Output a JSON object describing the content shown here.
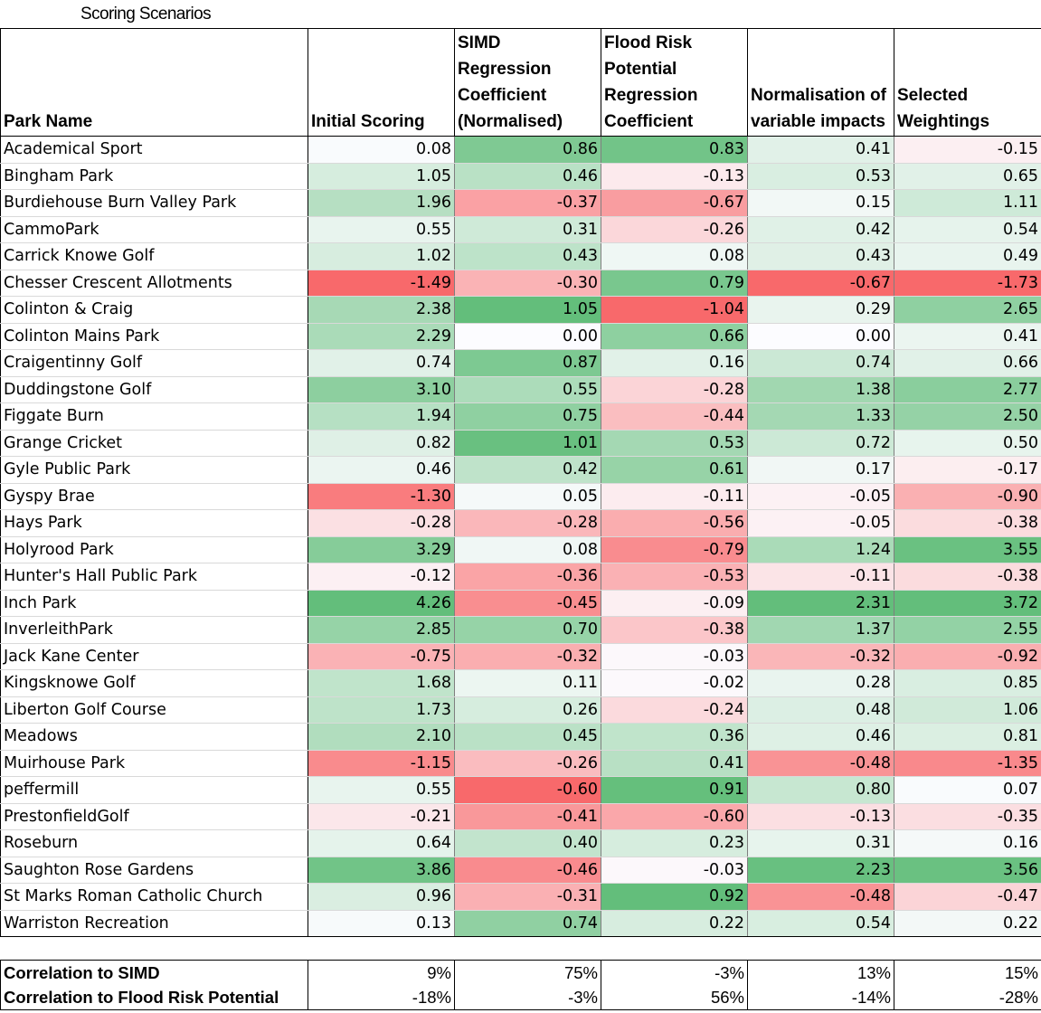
{
  "title": "Scoring Scenarios",
  "headers": [
    "Park Name",
    "Initial Scoring",
    "SIMD Regression Coefficient (Normalised)",
    "Flood Risk Potential Regression Coefficient",
    "Normalisation of variable impacts",
    "Selected Weightings"
  ],
  "colors": {
    "positive": "#63be7b",
    "negative": "#f8696b",
    "neutral": "#fcfcff"
  },
  "rows": [
    {
      "name": "Academical Sport",
      "v": [
        "0.08",
        "0.86",
        "0.83",
        "0.41",
        "-0.15"
      ]
    },
    {
      "name": "Bingham Park",
      "v": [
        "1.05",
        "0.46",
        "-0.13",
        "0.53",
        "0.65"
      ]
    },
    {
      "name": "Burdiehouse Burn Valley Park",
      "v": [
        "1.96",
        "-0.37",
        "-0.67",
        "0.15",
        "1.11"
      ]
    },
    {
      "name": "CammoPark",
      "v": [
        "0.55",
        "0.31",
        "-0.26",
        "0.42",
        "0.54"
      ]
    },
    {
      "name": "Carrick Knowe Golf",
      "v": [
        "1.02",
        "0.43",
        "0.08",
        "0.43",
        "0.49"
      ]
    },
    {
      "name": "Chesser Crescent Allotments",
      "v": [
        "-1.49",
        "-0.30",
        "0.79",
        "-0.67",
        "-1.73"
      ]
    },
    {
      "name": "Colinton & Craig",
      "v": [
        "2.38",
        "1.05",
        "-1.04",
        "0.29",
        "2.65"
      ]
    },
    {
      "name": "Colinton Mains Park",
      "v": [
        "2.29",
        "0.00",
        "0.66",
        "0.00",
        "0.41"
      ]
    },
    {
      "name": "Craigentinny Golf",
      "v": [
        "0.74",
        "0.87",
        "0.16",
        "0.74",
        "0.66"
      ]
    },
    {
      "name": "Duddingstone Golf",
      "v": [
        "3.10",
        "0.55",
        "-0.28",
        "1.38",
        "2.77"
      ]
    },
    {
      "name": "Figgate Burn",
      "v": [
        "1.94",
        "0.75",
        "-0.44",
        "1.33",
        "2.50"
      ]
    },
    {
      "name": "Grange Cricket",
      "v": [
        "0.82",
        "1.01",
        "0.53",
        "0.72",
        "0.50"
      ]
    },
    {
      "name": "Gyle Public Park",
      "v": [
        "0.46",
        "0.42",
        "0.61",
        "0.17",
        "-0.17"
      ]
    },
    {
      "name": "Gyspy Brae",
      "v": [
        "-1.30",
        "0.05",
        "-0.11",
        "-0.05",
        "-0.90"
      ]
    },
    {
      "name": "Hays Park",
      "v": [
        "-0.28",
        "-0.28",
        "-0.56",
        "-0.05",
        "-0.38"
      ]
    },
    {
      "name": "Holyrood Park",
      "v": [
        "3.29",
        "0.08",
        "-0.79",
        "1.24",
        "3.55"
      ]
    },
    {
      "name": "Hunter's Hall Public Park",
      "v": [
        "-0.12",
        "-0.36",
        "-0.53",
        "-0.11",
        "-0.38"
      ]
    },
    {
      "name": "Inch Park",
      "v": [
        "4.26",
        "-0.45",
        "-0.09",
        "2.31",
        "3.72"
      ]
    },
    {
      "name": "InverleithPark",
      "v": [
        "2.85",
        "0.70",
        "-0.38",
        "1.37",
        "2.55"
      ]
    },
    {
      "name": "Jack Kane Center",
      "v": [
        "-0.75",
        "-0.32",
        "-0.03",
        "-0.32",
        "-0.92"
      ]
    },
    {
      "name": "Kingsknowe Golf",
      "v": [
        "1.68",
        "0.11",
        "-0.02",
        "0.28",
        "0.85"
      ]
    },
    {
      "name": "Liberton Golf Course",
      "v": [
        "1.73",
        "0.26",
        "-0.24",
        "0.48",
        "1.06"
      ]
    },
    {
      "name": "Meadows",
      "v": [
        "2.10",
        "0.45",
        "0.36",
        "0.46",
        "0.81"
      ]
    },
    {
      "name": "Muirhouse Park",
      "v": [
        "-1.15",
        "-0.26",
        "0.41",
        "-0.48",
        "-1.35"
      ]
    },
    {
      "name": "peffermill",
      "v": [
        "0.55",
        "-0.60",
        "0.91",
        "0.80",
        "0.07"
      ]
    },
    {
      "name": "PrestonfieldGolf",
      "v": [
        "-0.21",
        "-0.41",
        "-0.60",
        "-0.13",
        "-0.35"
      ]
    },
    {
      "name": "Roseburn",
      "v": [
        "0.64",
        "0.40",
        "0.23",
        "0.31",
        "0.16"
      ]
    },
    {
      "name": "Saughton Rose Gardens",
      "v": [
        "3.86",
        "-0.46",
        "-0.03",
        "2.23",
        "3.56"
      ]
    },
    {
      "name": "St Marks Roman Catholic Church",
      "v": [
        "0.96",
        "-0.31",
        "0.92",
        "-0.48",
        "-0.47"
      ]
    },
    {
      "name": "Warriston Recreation",
      "v": [
        "0.13",
        "0.74",
        "0.22",
        "0.54",
        "0.22"
      ]
    }
  ],
  "correlations": [
    {
      "name": "Correlation to SIMD",
      "v": [
        "9%",
        "75%",
        "-3%",
        "13%",
        "15%"
      ]
    },
    {
      "name": "Correlation to Flood Risk Potential",
      "v": [
        "-18%",
        "-3%",
        "56%",
        "-14%",
        "-28%"
      ]
    }
  ]
}
